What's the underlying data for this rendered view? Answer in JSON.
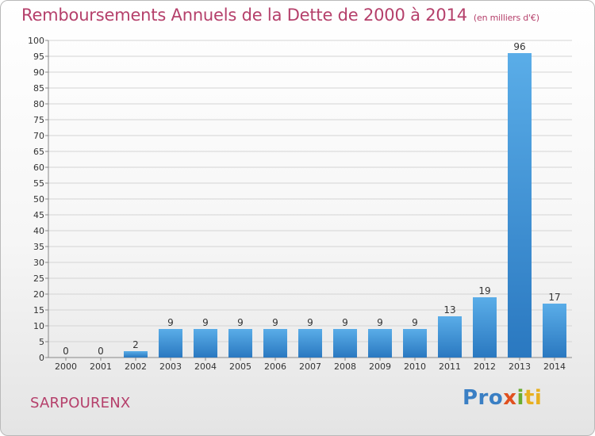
{
  "title": "Remboursements Annuels de la Dette de 2000 à 2014",
  "subtitle": "(en milliers d'€)",
  "town": "SARPOURENX",
  "logo": {
    "p1": "Pro",
    "p2": "x",
    "p3": "i",
    "p4": "ti"
  },
  "colors": {
    "title": "#b5406b",
    "bar_light": "#5aade8",
    "bar_dark": "#2a78c0"
  },
  "chart_data": {
    "type": "bar",
    "categories": [
      "2000",
      "2001",
      "2002",
      "2003",
      "2004",
      "2005",
      "2006",
      "2007",
      "2008",
      "2009",
      "2010",
      "2011",
      "2012",
      "2013",
      "2014"
    ],
    "values": [
      0,
      0,
      2,
      9,
      9,
      9,
      9,
      9,
      9,
      9,
      9,
      13,
      19,
      96,
      17
    ],
    "ylim": [
      0,
      100
    ],
    "yticks": [
      0,
      5,
      10,
      15,
      20,
      25,
      30,
      35,
      40,
      45,
      50,
      55,
      60,
      65,
      70,
      75,
      80,
      85,
      90,
      95,
      100
    ],
    "grid": true
  }
}
